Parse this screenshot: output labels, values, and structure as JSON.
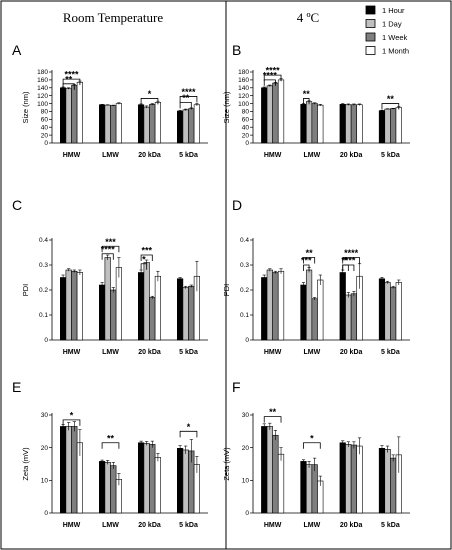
{
  "column_titles": [
    "Room Temperature",
    "4 ºC"
  ],
  "legend": {
    "items": [
      "1 Hour",
      "1 Day",
      "1 Week",
      "1 Month"
    ],
    "colors": [
      "#000000",
      "#bfbfbf",
      "#7f7f7f",
      "#ffffff"
    ]
  },
  "chart_data": [
    {
      "panel": "A",
      "type": "bar",
      "ylabel": "Size (nm)",
      "ylim": [
        0,
        180
      ],
      "yticks": [
        0,
        20,
        40,
        60,
        80,
        100,
        120,
        140,
        160,
        180
      ],
      "categories": [
        "HMW",
        "LMW",
        "20 kDa",
        "5 kDa"
      ],
      "series": [
        {
          "name": "1 Hour",
          "values": [
            140,
            97,
            97,
            81
          ],
          "errors": [
            2,
            1,
            2,
            2
          ]
        },
        {
          "name": "1 Day",
          "values": [
            138,
            96,
            91,
            84
          ],
          "errors": [
            2,
            1,
            3,
            2
          ]
        },
        {
          "name": "1 Week",
          "values": [
            146,
            95,
            98,
            87
          ],
          "errors": [
            2,
            1,
            2,
            2
          ]
        },
        {
          "name": "1 Month",
          "values": [
            154,
            100,
            103,
            97
          ],
          "errors": [
            3,
            2,
            3,
            3
          ]
        }
      ],
      "significance": [
        {
          "label": "****",
          "cat": 0,
          "from": 0,
          "to": 3,
          "y": 162
        },
        {
          "label": "**",
          "cat": 0,
          "from": 0,
          "to": 2,
          "y": 150
        },
        {
          "label": "*",
          "cat": 2,
          "from": 0,
          "to": 3,
          "y": 113
        },
        {
          "label": "****",
          "cat": 3,
          "from": 0,
          "to": 3,
          "y": 118
        },
        {
          "label": "**",
          "cat": 3,
          "from": 0,
          "to": 2,
          "y": 103
        }
      ]
    },
    {
      "panel": "B",
      "type": "bar",
      "ylabel": "Size (nm)",
      "ylim": [
        0,
        180
      ],
      "yticks": [
        0,
        20,
        40,
        60,
        80,
        100,
        120,
        140,
        160,
        180
      ],
      "categories": [
        "HMW",
        "LMW",
        "20 kDa",
        "5 kDa"
      ],
      "series": [
        {
          "name": "1 Hour",
          "values": [
            140,
            98,
            98,
            82
          ],
          "errors": [
            2,
            2,
            2,
            1
          ]
        },
        {
          "name": "1 Day",
          "values": [
            145,
            105,
            97,
            86
          ],
          "errors": [
            2,
            2,
            2,
            1
          ]
        },
        {
          "name": "1 Week",
          "values": [
            152,
            100,
            97,
            87
          ],
          "errors": [
            2,
            2,
            2,
            1
          ]
        },
        {
          "name": "1 Month",
          "values": [
            160,
            96,
            97,
            90
          ],
          "errors": [
            3,
            2,
            2,
            2
          ]
        }
      ],
      "significance": [
        {
          "label": "****",
          "cat": 0,
          "from": 0,
          "to": 3,
          "y": 172
        },
        {
          "label": "****",
          "cat": 0,
          "from": 0,
          "to": 2,
          "y": 160
        },
        {
          "label": "**",
          "cat": 1,
          "from": 0,
          "to": 1,
          "y": 113
        },
        {
          "label": "**",
          "cat": 3,
          "from": 0,
          "to": 3,
          "y": 100
        }
      ]
    },
    {
      "panel": "C",
      "type": "bar",
      "ylabel": "PDI",
      "ylim": [
        0,
        0.4
      ],
      "yticks": [
        0,
        0.1,
        0.2,
        0.3,
        0.4
      ],
      "categories": [
        "HMW",
        "LMW",
        "20 kDa",
        "5 kDa"
      ],
      "series": [
        {
          "name": "1 Hour",
          "values": [
            0.25,
            0.22,
            0.27,
            0.245
          ],
          "errors": [
            0.01,
            0.01,
            0.01,
            0.005
          ]
        },
        {
          "name": "1 Day",
          "values": [
            0.28,
            0.33,
            0.31,
            0.21
          ],
          "errors": [
            0.005,
            0.01,
            0.01,
            0.005
          ]
        },
        {
          "name": "1 Week",
          "values": [
            0.275,
            0.2,
            0.17,
            0.215
          ],
          "errors": [
            0.005,
            0.01,
            0.005,
            0.005
          ]
        },
        {
          "name": "1 Month",
          "values": [
            0.27,
            0.29,
            0.255,
            0.255
          ],
          "errors": [
            0.01,
            0.04,
            0.02,
            0.06
          ]
        }
      ],
      "significance": [
        {
          "label": "***",
          "cat": 1,
          "from": 0,
          "to": 3,
          "y": 0.375
        },
        {
          "label": "****",
          "cat": 1,
          "from": 0,
          "to": 2,
          "y": 0.345
        },
        {
          "label": "***",
          "cat": 2,
          "from": 0,
          "to": 2,
          "y": 0.34
        },
        {
          "label": "*",
          "cat": 2,
          "from": 0,
          "to": 1,
          "y": 0.305
        }
      ]
    },
    {
      "panel": "D",
      "type": "bar",
      "ylabel": "PDI",
      "ylim": [
        0,
        0.4
      ],
      "yticks": [
        0,
        0.1,
        0.2,
        0.3,
        0.4
      ],
      "categories": [
        "HMW",
        "LMW",
        "20 kDa",
        "5 kDa"
      ],
      "series": [
        {
          "name": "1 Hour",
          "values": [
            0.25,
            0.22,
            0.27,
            0.245
          ],
          "errors": [
            0.01,
            0.01,
            0.01,
            0.005
          ]
        },
        {
          "name": "1 Day",
          "values": [
            0.28,
            0.28,
            0.18,
            0.23
          ],
          "errors": [
            0.005,
            0.01,
            0.01,
            0.005
          ]
        },
        {
          "name": "1 Week",
          "values": [
            0.27,
            0.165,
            0.185,
            0.21
          ],
          "errors": [
            0.005,
            0.005,
            0.01,
            0.005
          ]
        },
        {
          "name": "1 Month",
          "values": [
            0.275,
            0.24,
            0.255,
            0.23
          ],
          "errors": [
            0.01,
            0.02,
            0.05,
            0.01
          ]
        }
      ],
      "significance": [
        {
          "label": "**",
          "cat": 1,
          "from": 0,
          "to": 2,
          "y": 0.33
        },
        {
          "label": "***",
          "cat": 1,
          "from": 0,
          "to": 1,
          "y": 0.3
        },
        {
          "label": "****",
          "cat": 2,
          "from": 0,
          "to": 3,
          "y": 0.33
        },
        {
          "label": "****",
          "cat": 2,
          "from": 0,
          "to": 2,
          "y": 0.3
        },
        {
          "label": "*",
          "cat": 2,
          "from": 0,
          "to": 1,
          "y": 0.3
        }
      ]
    },
    {
      "panel": "E",
      "type": "bar",
      "ylabel": "Zeta (mV)",
      "ylim": [
        0,
        30
      ],
      "yticks": [
        0,
        10,
        20,
        30
      ],
      "categories": [
        "HMW",
        "LMW",
        "20 kDa",
        "5 kDa"
      ],
      "series": [
        {
          "name": "1 Hour",
          "values": [
            26.5,
            15.8,
            21.5,
            19.8
          ],
          "errors": [
            0.6,
            0.4,
            0.5,
            0.8
          ]
        },
        {
          "name": "1 Day",
          "values": [
            26.5,
            15.5,
            21.3,
            19.3
          ],
          "errors": [
            1.2,
            0.6,
            0.6,
            1.2
          ]
        },
        {
          "name": "1 Week",
          "values": [
            26.5,
            14.5,
            21.0,
            19.0
          ],
          "errors": [
            1.5,
            1.0,
            1.0,
            3.5
          ]
        },
        {
          "name": "1 Month",
          "values": [
            21.5,
            10.3,
            17.0,
            14.8
          ],
          "errors": [
            4.0,
            1.8,
            1.2,
            2.5
          ]
        }
      ],
      "significance": [
        {
          "label": "*",
          "cat": 0,
          "from": 0,
          "to": 3,
          "y": 28.5
        },
        {
          "label": "**",
          "cat": 1,
          "from": 0,
          "to": 3,
          "y": 21.5
        },
        {
          "label": "*",
          "cat": 3,
          "from": 0,
          "to": 3,
          "y": 25.0
        }
      ]
    },
    {
      "panel": "F",
      "type": "bar",
      "ylabel": "Zeta (mV)",
      "ylim": [
        0,
        30
      ],
      "yticks": [
        0,
        10,
        20,
        30
      ],
      "categories": [
        "HMW",
        "LMW",
        "20 kDa",
        "5 kDa"
      ],
      "series": [
        {
          "name": "1 Hour",
          "values": [
            26.5,
            15.8,
            21.5,
            19.8
          ],
          "errors": [
            0.8,
            0.5,
            0.6,
            0.8
          ]
        },
        {
          "name": "1 Day",
          "values": [
            26.5,
            14.8,
            21.0,
            19.5
          ],
          "errors": [
            1.0,
            1.0,
            0.8,
            1.0
          ]
        },
        {
          "name": "1 Week",
          "values": [
            23.8,
            14.8,
            20.8,
            16.8
          ],
          "errors": [
            1.5,
            2.0,
            1.0,
            1.0
          ]
        },
        {
          "name": "1 Month",
          "values": [
            18.0,
            9.8,
            20.5,
            17.8
          ],
          "errors": [
            2.0,
            1.5,
            2.5,
            5.5
          ]
        }
      ],
      "significance": [
        {
          "label": "**",
          "cat": 0,
          "from": 0,
          "to": 3,
          "y": 29.5
        },
        {
          "label": "*",
          "cat": 1,
          "from": 0,
          "to": 3,
          "y": 21.5
        }
      ]
    }
  ]
}
